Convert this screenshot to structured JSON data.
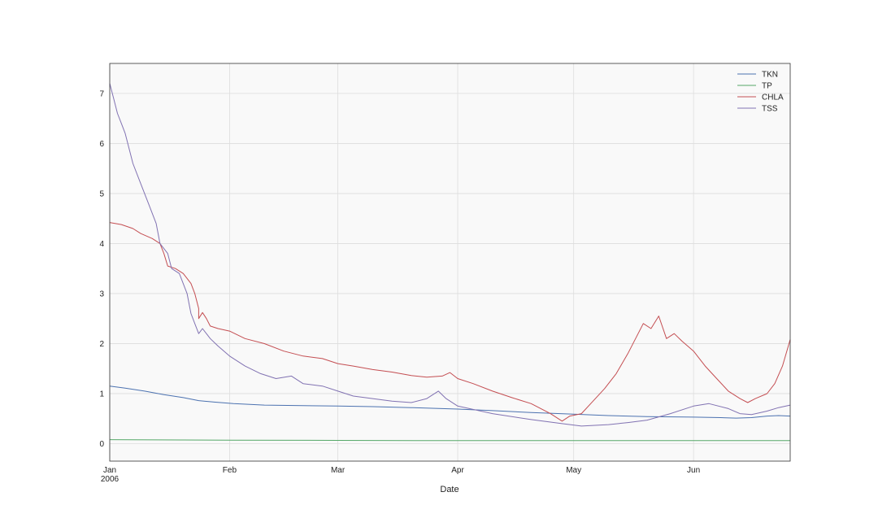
{
  "chart_data": {
    "type": "line",
    "xlabel": "Date",
    "ylabel": "",
    "title": "",
    "xlim": [
      "2006-01-01",
      "2006-06-26"
    ],
    "ylim": [
      -0.35,
      7.6
    ],
    "x_ticks": [
      {
        "date": "2006-01-01",
        "label": "Jan",
        "sublabel": "2006"
      },
      {
        "date": "2006-02-01",
        "label": "Feb",
        "sublabel": ""
      },
      {
        "date": "2006-03-01",
        "label": "Mar",
        "sublabel": ""
      },
      {
        "date": "2006-04-01",
        "label": "Apr",
        "sublabel": ""
      },
      {
        "date": "2006-05-01",
        "label": "May",
        "sublabel": ""
      },
      {
        "date": "2006-06-01",
        "label": "Jun",
        "sublabel": ""
      }
    ],
    "y_ticks": [
      0,
      1,
      2,
      3,
      4,
      5,
      6,
      7
    ],
    "grid": true,
    "legend_position": "top-right",
    "series": [
      {
        "name": "TKN",
        "color": "#4c72b0",
        "points": [
          [
            "2006-01-01",
            1.15
          ],
          [
            "2006-01-05",
            1.11
          ],
          [
            "2006-01-10",
            1.05
          ],
          [
            "2006-01-15",
            0.98
          ],
          [
            "2006-01-20",
            0.92
          ],
          [
            "2006-01-24",
            0.86
          ],
          [
            "2006-01-28",
            0.83
          ],
          [
            "2006-02-02",
            0.8
          ],
          [
            "2006-02-10",
            0.77
          ],
          [
            "2006-02-20",
            0.76
          ],
          [
            "2006-03-01",
            0.75
          ],
          [
            "2006-03-10",
            0.74
          ],
          [
            "2006-03-20",
            0.72
          ],
          [
            "2006-04-01",
            0.69
          ],
          [
            "2006-04-10",
            0.66
          ],
          [
            "2006-04-20",
            0.62
          ],
          [
            "2006-05-01",
            0.59
          ],
          [
            "2006-05-10",
            0.56
          ],
          [
            "2006-05-20",
            0.54
          ],
          [
            "2006-06-01",
            0.53
          ],
          [
            "2006-06-08",
            0.52
          ],
          [
            "2006-06-12",
            0.51
          ],
          [
            "2006-06-16",
            0.52
          ],
          [
            "2006-06-20",
            0.55
          ],
          [
            "2006-06-23",
            0.56
          ],
          [
            "2006-06-26",
            0.55
          ]
        ]
      },
      {
        "name": "TP",
        "color": "#55a868",
        "points": [
          [
            "2006-01-01",
            0.08
          ],
          [
            "2006-02-01",
            0.07
          ],
          [
            "2006-03-01",
            0.065
          ],
          [
            "2006-04-01",
            0.06
          ],
          [
            "2006-05-01",
            0.06
          ],
          [
            "2006-06-01",
            0.06
          ],
          [
            "2006-06-26",
            0.06
          ]
        ]
      },
      {
        "name": "CHLA",
        "color": "#c44e52",
        "points": [
          [
            "2006-01-01",
            4.42
          ],
          [
            "2006-01-04",
            4.38
          ],
          [
            "2006-01-07",
            4.3
          ],
          [
            "2006-01-09",
            4.2
          ],
          [
            "2006-01-12",
            4.1
          ],
          [
            "2006-01-14",
            4.0
          ],
          [
            "2006-01-15",
            3.8
          ],
          [
            "2006-01-16",
            3.55
          ],
          [
            "2006-01-18",
            3.5
          ],
          [
            "2006-01-20",
            3.4
          ],
          [
            "2006-01-22",
            3.2
          ],
          [
            "2006-01-23",
            3.0
          ],
          [
            "2006-01-24",
            2.7
          ],
          [
            "2006-01-24",
            2.5
          ],
          [
            "2006-01-25",
            2.62
          ],
          [
            "2006-01-26",
            2.5
          ],
          [
            "2006-01-27",
            2.35
          ],
          [
            "2006-01-29",
            2.3
          ],
          [
            "2006-02-01",
            2.25
          ],
          [
            "2006-02-05",
            2.1
          ],
          [
            "2006-02-10",
            2.0
          ],
          [
            "2006-02-15",
            1.85
          ],
          [
            "2006-02-20",
            1.75
          ],
          [
            "2006-02-25",
            1.7
          ],
          [
            "2006-03-01",
            1.6
          ],
          [
            "2006-03-05",
            1.55
          ],
          [
            "2006-03-10",
            1.48
          ],
          [
            "2006-03-15",
            1.43
          ],
          [
            "2006-03-20",
            1.36
          ],
          [
            "2006-03-24",
            1.33
          ],
          [
            "2006-03-28",
            1.35
          ],
          [
            "2006-03-30",
            1.42
          ],
          [
            "2006-04-01",
            1.3
          ],
          [
            "2006-04-05",
            1.2
          ],
          [
            "2006-04-10",
            1.05
          ],
          [
            "2006-04-15",
            0.92
          ],
          [
            "2006-04-20",
            0.8
          ],
          [
            "2006-04-25",
            0.6
          ],
          [
            "2006-04-28",
            0.45
          ],
          [
            "2006-04-30",
            0.55
          ],
          [
            "2006-05-03",
            0.6
          ],
          [
            "2006-05-06",
            0.85
          ],
          [
            "2006-05-09",
            1.1
          ],
          [
            "2006-05-12",
            1.4
          ],
          [
            "2006-05-15",
            1.8
          ],
          [
            "2006-05-17",
            2.1
          ],
          [
            "2006-05-19",
            2.4
          ],
          [
            "2006-05-21",
            2.3
          ],
          [
            "2006-05-23",
            2.55
          ],
          [
            "2006-05-25",
            2.1
          ],
          [
            "2006-05-27",
            2.2
          ],
          [
            "2006-05-29",
            2.05
          ],
          [
            "2006-06-01",
            1.85
          ],
          [
            "2006-06-04",
            1.55
          ],
          [
            "2006-06-07",
            1.3
          ],
          [
            "2006-06-10",
            1.05
          ],
          [
            "2006-06-13",
            0.9
          ],
          [
            "2006-06-15",
            0.82
          ],
          [
            "2006-06-17",
            0.9
          ],
          [
            "2006-06-20",
            1.0
          ],
          [
            "2006-06-22",
            1.2
          ],
          [
            "2006-06-24",
            1.55
          ],
          [
            "2006-06-26",
            2.08
          ]
        ]
      },
      {
        "name": "TSS",
        "color": "#8172b2",
        "points": [
          [
            "2006-01-01",
            7.2
          ],
          [
            "2006-01-02",
            6.9
          ],
          [
            "2006-01-03",
            6.6
          ],
          [
            "2006-01-04",
            6.4
          ],
          [
            "2006-01-05",
            6.2
          ],
          [
            "2006-01-07",
            5.6
          ],
          [
            "2006-01-09",
            5.2
          ],
          [
            "2006-01-11",
            4.8
          ],
          [
            "2006-01-13",
            4.4
          ],
          [
            "2006-01-14",
            4.0
          ],
          [
            "2006-01-16",
            3.8
          ],
          [
            "2006-01-17",
            3.5
          ],
          [
            "2006-01-19",
            3.4
          ],
          [
            "2006-01-21",
            3.0
          ],
          [
            "2006-01-22",
            2.6
          ],
          [
            "2006-01-23",
            2.4
          ],
          [
            "2006-01-24",
            2.2
          ],
          [
            "2006-01-25",
            2.3
          ],
          [
            "2006-01-27",
            2.1
          ],
          [
            "2006-01-29",
            1.95
          ],
          [
            "2006-02-01",
            1.75
          ],
          [
            "2006-02-05",
            1.55
          ],
          [
            "2006-02-09",
            1.4
          ],
          [
            "2006-02-13",
            1.3
          ],
          [
            "2006-02-17",
            1.35
          ],
          [
            "2006-02-20",
            1.2
          ],
          [
            "2006-02-25",
            1.15
          ],
          [
            "2006-03-01",
            1.05
          ],
          [
            "2006-03-05",
            0.95
          ],
          [
            "2006-03-10",
            0.9
          ],
          [
            "2006-03-15",
            0.85
          ],
          [
            "2006-03-20",
            0.82
          ],
          [
            "2006-03-24",
            0.9
          ],
          [
            "2006-03-27",
            1.05
          ],
          [
            "2006-03-29",
            0.9
          ],
          [
            "2006-04-01",
            0.75
          ],
          [
            "2006-04-10",
            0.6
          ],
          [
            "2006-04-20",
            0.48
          ],
          [
            "2006-04-28",
            0.4
          ],
          [
            "2006-05-03",
            0.35
          ],
          [
            "2006-05-10",
            0.38
          ],
          [
            "2006-05-15",
            0.42
          ],
          [
            "2006-05-20",
            0.47
          ],
          [
            "2006-05-26",
            0.6
          ],
          [
            "2006-06-01",
            0.75
          ],
          [
            "2006-06-05",
            0.8
          ],
          [
            "2006-06-10",
            0.7
          ],
          [
            "2006-06-13",
            0.6
          ],
          [
            "2006-06-16",
            0.58
          ],
          [
            "2006-06-20",
            0.65
          ],
          [
            "2006-06-23",
            0.72
          ],
          [
            "2006-06-26",
            0.77
          ]
        ]
      }
    ]
  }
}
